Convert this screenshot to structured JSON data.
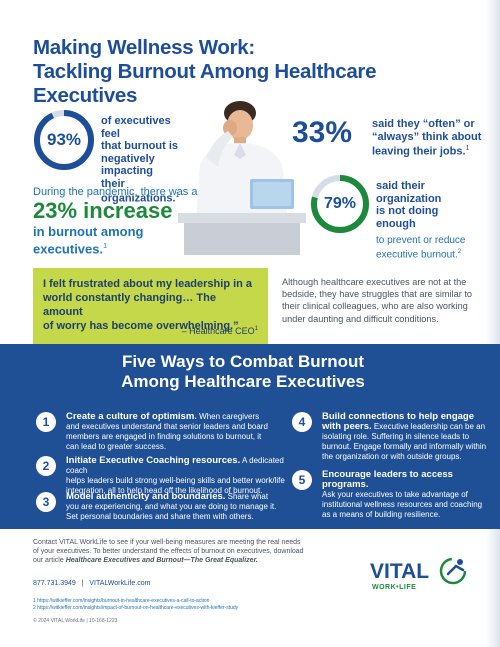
{
  "header": {
    "title_line1": "Making Wellness Work:",
    "title_line2": "Tackling Burnout Among Healthcare Executives"
  },
  "stats": {
    "s93": {
      "value": "93%",
      "line1": "of executives feel",
      "line2": "that burnout is",
      "line3": "negatively impacting",
      "line4": "their organizations.",
      "ref": "1",
      "fill_fraction": 0.93
    },
    "s33": {
      "value": "33%",
      "line1": "said they “often” or",
      "line2": "“always” think about",
      "line3": "leaving their jobs.",
      "ref": "1"
    },
    "s23": {
      "pre_line1": "During the pandemic, there was a",
      "big": "23% increase",
      "post_line1": "in burnout among",
      "post_line2": "executives.",
      "ref": "1"
    },
    "s79": {
      "value": "79%",
      "line1": "said their",
      "line2": "organization",
      "line3": "is not doing",
      "line4": "enough",
      "post_line1": "to prevent or reduce",
      "post_line2": "executive burnout.",
      "ref": "2",
      "fill_fraction": 0.79
    }
  },
  "quote": {
    "line1": "I felt frustrated about my leadership in a",
    "line2": "world constantly changing… The amount",
    "line3": "of worry has become overwhelming.”",
    "attribution": "– Healthcare CEO",
    "ref": "1",
    "side_line1": "Although healthcare executives are not at the",
    "side_line2": "bedside, they have struggles that are similar to",
    "side_line3": "their clinical colleagues, who are also working",
    "side_line4": "under daunting and difficult conditions."
  },
  "five_ways": {
    "title_line1": "Five Ways to Combat Burnout",
    "title_line2": "Among Healthcare Executives",
    "items": [
      {
        "num": "1",
        "title": "Create a culture of optimism.",
        "l1": " When caregivers",
        "l2": "and executives understand that senior leaders and board",
        "l3": "members are engaged in finding solutions to burnout, it",
        "l4": "can lead to greater success."
      },
      {
        "num": "2",
        "title": "Initiate Executive Coaching resources.",
        "l1": " A dedicated coach",
        "l2": "helps leaders build strong well-being skills and better work/life",
        "l3": "integration, all to help head off the likelihood of burnout.",
        "l4": ""
      },
      {
        "num": "3",
        "title": "Model authenticity and boundaries.",
        "l1": " Share what",
        "l2": "you are experiencing, and what you are doing to manage it.",
        "l3": "Set personal boundaries and share them with others.",
        "l4": ""
      },
      {
        "num": "4",
        "title_l1": "Build connections to help engage",
        "title_l2": "with peers.",
        "l1": " Executive leadership can be an",
        "l2": "isolating role. Suffering in silence leads to",
        "l3": "burnout. Engage formally and informally within",
        "l4": "the organization or with outside groups."
      },
      {
        "num": "5",
        "title": "Encourage leaders to access programs.",
        "l1": "Ask your executives to take advantage of",
        "l2": "institutional wellness resources and coaching",
        "l3": "as a means of building resilience.",
        "l4": ""
      }
    ]
  },
  "footer": {
    "p1": "Contact VITAL WorkLife to see if your well-being measures are meeting the real needs",
    "p2": "of your executives. To better understand the effects of burnout on executives, download",
    "p3_pre": "our article ",
    "p3_title": "Healthcare Executives and Burnout—The Great Equalizer.",
    "phone": "877.731.3949",
    "separator": "|",
    "website": "VITALWorkLife.com",
    "ref1": "1 https://witkieffer.com/insights/burnout-in-healthcare-executives-a-call-to-action",
    "ref2": "2 https://witkieffer.com/insights/impact-of-burnout-on-healthcare-executives-with-kieffer-study",
    "copyright": "© 2024 VITAL WorkLife | 10-168-1223"
  },
  "logo": {
    "name": "VITAL",
    "sub": "WORK•LIFE"
  },
  "colors": {
    "navy": "#1d4e9a",
    "green": "#1d8a3b",
    "lime": "#c5d84a",
    "band": "#1f4f94"
  }
}
